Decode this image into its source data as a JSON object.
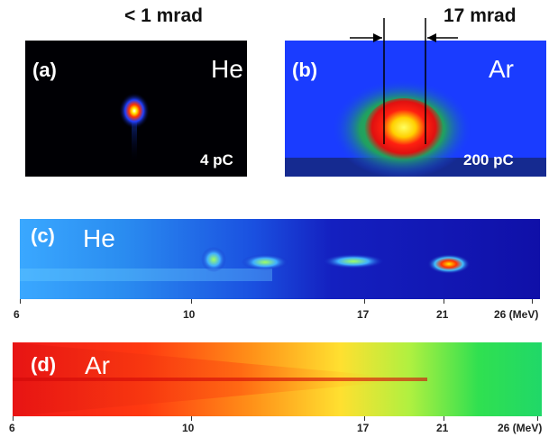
{
  "divergence_he": "< 1 mrad",
  "divergence_ar": "17 mrad",
  "panel_a": {
    "label": "(a)",
    "gas": "He",
    "charge": "4 pC"
  },
  "panel_b": {
    "label": "(b)",
    "gas": "Ar",
    "charge": "200 pC"
  },
  "panel_c": {
    "label": "(c)",
    "gas": "He",
    "ticks": [
      "6",
      "10",
      "17",
      "21",
      "26 (MeV)"
    ]
  },
  "panel_d": {
    "label": "(d)",
    "gas": "Ar",
    "ticks": [
      "6",
      "10",
      "17",
      "21",
      "26 (MeV)"
    ]
  },
  "colors": {
    "background_dark": "#000000",
    "background_blue": "#1a3cff",
    "hot": "#ffee00"
  }
}
